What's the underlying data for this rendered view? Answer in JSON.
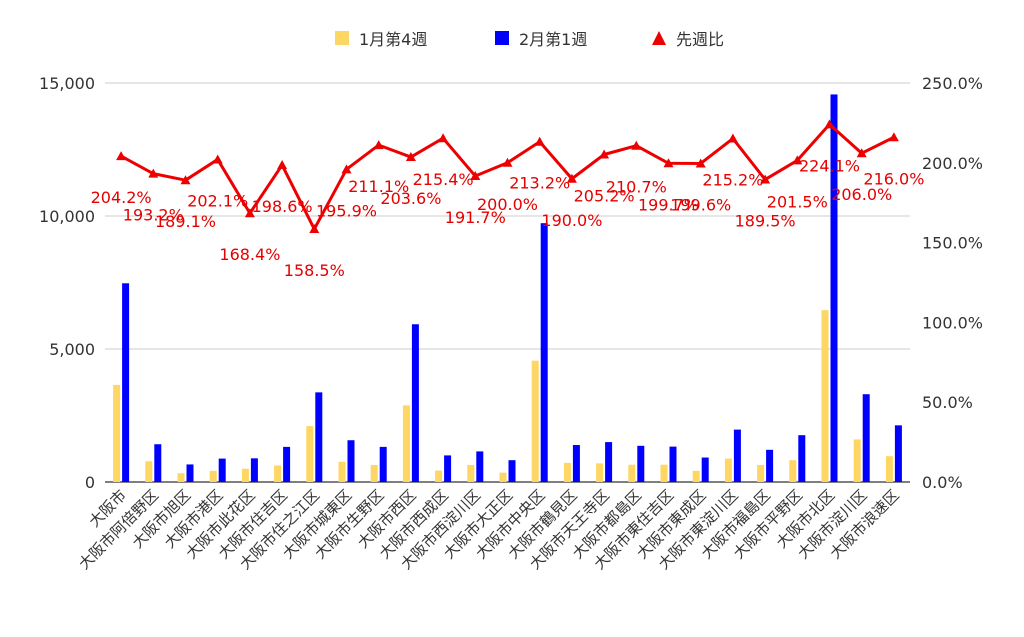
{
  "chart_data": {
    "type": "bar",
    "categories": [
      "大阪市",
      "大阪市阿倍野区",
      "大阪市旭区",
      "大阪市港区",
      "大阪市此花区",
      "大阪市住吉区",
      "大阪市住之江区",
      "大阪市城東区",
      "大阪市生野区",
      "大阪市西区",
      "大阪市西成区",
      "大阪市西淀川区",
      "大阪市大正区",
      "大阪市中央区",
      "大阪市鶴見区",
      "大阪市天王寺区",
      "大阪市都島区",
      "大阪市東住吉区",
      "大阪市東成区",
      "大阪市東淀川区",
      "大阪市福島区",
      "大阪市平野区",
      "大阪市北区",
      "大阪市淀川区",
      "大阪市浪速区"
    ],
    "series": [
      {
        "name": "1月第4週",
        "axis": "left",
        "color": "#fdd663",
        "values": [
          3650,
          780,
          330,
          420,
          500,
          620,
          2100,
          760,
          640,
          2880,
          430,
          640,
          350,
          4560,
          720,
          700,
          650,
          650,
          420,
          880,
          640,
          820,
          6460,
          1600,
          970
        ]
      },
      {
        "name": "2月第1週",
        "axis": "left",
        "color": "#0000ff",
        "values": [
          7470,
          1420,
          660,
          880,
          890,
          1320,
          3370,
          1570,
          1320,
          5930,
          1000,
          1150,
          820,
          9730,
          1390,
          1500,
          1360,
          1330,
          920,
          1970,
          1210,
          1760,
          14570,
          3300,
          2130
        ]
      },
      {
        "name": "先週比",
        "axis": "right",
        "type": "line",
        "color": "#ee0000",
        "values": [
          204.2,
          193.2,
          189.1,
          202.1,
          168.4,
          198.6,
          158.5,
          195.9,
          211.1,
          203.6,
          215.4,
          191.7,
          200.0,
          213.2,
          190.0,
          205.2,
          210.7,
          199.7,
          199.6,
          215.2,
          189.5,
          201.5,
          224.1,
          206.0,
          216.0
        ],
        "labels": [
          "204.2%",
          "193.2%",
          "189.1%",
          "202.1%",
          "168.4%",
          "198.6%",
          "158.5%",
          "195.9%",
          "211.1%",
          "203.6%",
          "215.4%",
          "191.7%",
          "200.0%",
          "213.2%",
          "190.0%",
          "205.2%",
          "210.7%",
          "199.7%",
          "199.6%",
          "215.2%",
          "189.5%",
          "201.5%",
          "224.1%",
          "206.0%",
          "216.0%"
        ]
      }
    ],
    "y_left": {
      "ylim": [
        0,
        15000
      ],
      "ticks": [
        "0",
        "5,000",
        "10,000",
        "15,000"
      ]
    },
    "y_right": {
      "ylim": [
        0,
        250
      ],
      "ticks": [
        "0.0%",
        "50.0%",
        "100.0%",
        "150.0%",
        "200.0%",
        "250.0%"
      ]
    },
    "grid": true,
    "legend": {
      "position": "top"
    }
  }
}
